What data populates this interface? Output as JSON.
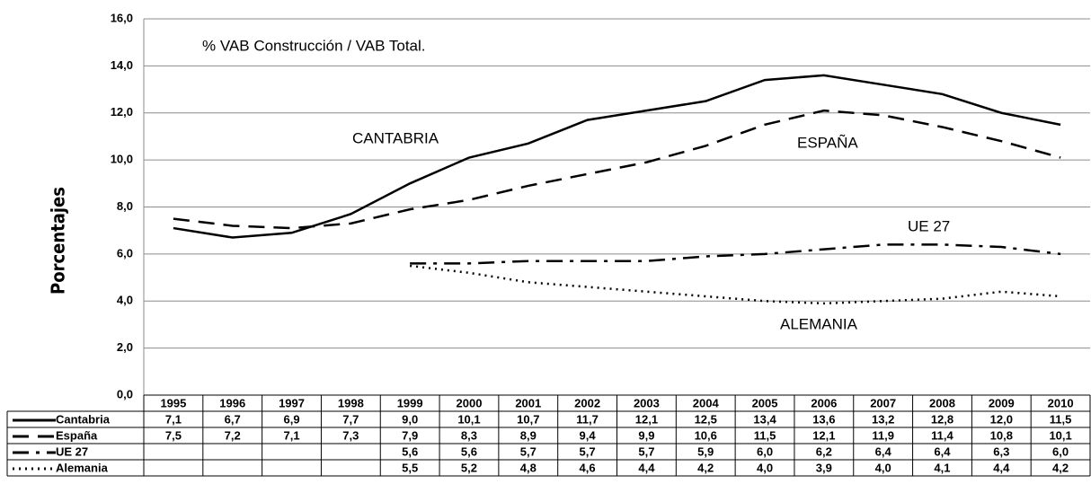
{
  "chart_data": {
    "type": "line",
    "title": "% VAB Construcción / VAB Total.",
    "y_label": "Porcentajes",
    "categories": [
      "1995",
      "1996",
      "1997",
      "1998",
      "1999",
      "2000",
      "2001",
      "2002",
      "2003",
      "2004",
      "2005",
      "2006",
      "2007",
      "2008",
      "2009",
      "2010"
    ],
    "ylim": [
      0,
      16
    ],
    "yticks": [
      {
        "value": 0,
        "label": "0,0"
      },
      {
        "value": 2,
        "label": "2,0"
      },
      {
        "value": 4,
        "label": "4,0"
      },
      {
        "value": 6,
        "label": "6,0"
      },
      {
        "value": 8,
        "label": "8,0"
      },
      {
        "value": 10,
        "label": "10,0"
      },
      {
        "value": 12,
        "label": "12,0"
      },
      {
        "value": 14,
        "label": "14,0"
      },
      {
        "value": 16,
        "label": "16,0"
      }
    ],
    "grid": true,
    "series": [
      {
        "name": "Cantabria",
        "color": "#000000",
        "dash": "solid",
        "values": [
          7.1,
          6.7,
          6.9,
          7.7,
          9.0,
          10.1,
          10.7,
          11.7,
          12.1,
          12.5,
          13.4,
          13.6,
          13.2,
          12.8,
          12.0,
          11.5
        ],
        "value_labels": [
          "7,1",
          "6,7",
          "6,9",
          "7,7",
          "9,0",
          "10,1",
          "10,7",
          "11,7",
          "12,1",
          "12,5",
          "13,4",
          "13,6",
          "13,2",
          "12,8",
          "12,0",
          "11,5"
        ]
      },
      {
        "name": "España",
        "color": "#000000",
        "dash": "dashed",
        "values": [
          7.5,
          7.2,
          7.1,
          7.3,
          7.9,
          8.3,
          8.9,
          9.4,
          9.9,
          10.6,
          11.5,
          12.1,
          11.9,
          11.4,
          10.8,
          10.1
        ],
        "value_labels": [
          "7,5",
          "7,2",
          "7,1",
          "7,3",
          "7,9",
          "8,3",
          "8,9",
          "9,4",
          "9,9",
          "10,6",
          "11,5",
          "12,1",
          "11,9",
          "11,4",
          "10,8",
          "10,1"
        ]
      },
      {
        "name": "UE 27",
        "color": "#000000",
        "dash": "dashdot",
        "values": [
          null,
          null,
          null,
          null,
          5.6,
          5.6,
          5.7,
          5.7,
          5.7,
          5.9,
          6.0,
          6.2,
          6.4,
          6.4,
          6.3,
          6.0
        ],
        "value_labels": [
          null,
          null,
          null,
          null,
          "5,6",
          "5,6",
          "5,7",
          "5,7",
          "5,7",
          "5,9",
          "6,0",
          "6,2",
          "6,4",
          "6,4",
          "6,3",
          "6,0"
        ]
      },
      {
        "name": "Alemania",
        "color": "#000000",
        "dash": "dotted",
        "values": [
          null,
          null,
          null,
          null,
          5.5,
          5.2,
          4.8,
          4.6,
          4.4,
          4.2,
          4.0,
          3.9,
          4.0,
          4.1,
          4.4,
          4.2
        ],
        "value_labels": [
          null,
          null,
          null,
          null,
          "5,5",
          "5,2",
          "4,8",
          "4,6",
          "4,4",
          "4,2",
          "4,0",
          "3,9",
          "4,0",
          "4,1",
          "4,4",
          "4,2"
        ]
      }
    ],
    "annotations": [
      "CANTABRIA",
      "ESPAÑA",
      "UE 27",
      "ALEMANIA"
    ]
  }
}
